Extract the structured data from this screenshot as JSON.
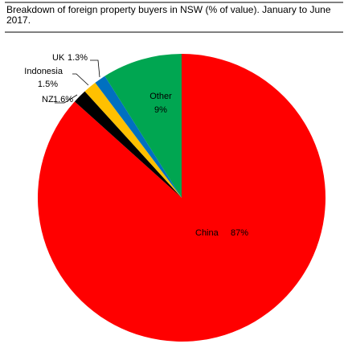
{
  "chart_data": {
    "type": "pie",
    "title": "Breakdown of foreign property buyers in NSW (% of value). January to June 2017.",
    "categories": [
      "China",
      "NZ",
      "Indonesia",
      "UK",
      "Other"
    ],
    "values": [
      87,
      1.6,
      1.5,
      1.3,
      9
    ],
    "value_labels": [
      "87%",
      "1.6%",
      "1.5%",
      "1.3%",
      "9%"
    ],
    "colors": [
      "#ff0000",
      "#000000",
      "#ffc000",
      "#0070c0",
      "#00a651"
    ]
  }
}
